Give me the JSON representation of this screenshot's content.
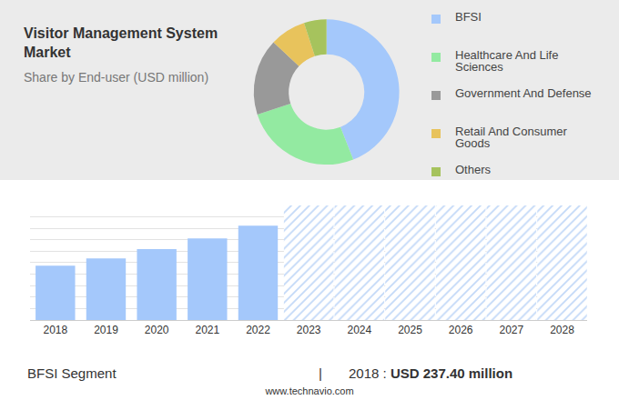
{
  "chart_data": [
    {
      "type": "pie",
      "title": "Visitor Management System Market",
      "subtitle": "Share by End-user (USD million)",
      "categories": [
        "BFSI",
        "Healthcare And Life Sciences",
        "Government And Defense",
        "Retail And Consumer Goods",
        "Others"
      ],
      "values": [
        44,
        26,
        17,
        8,
        5
      ],
      "colors": [
        "#a4c8fb",
        "#93eaa1",
        "#999999",
        "#e8c35c",
        "#a6c35d"
      ],
      "legend": "right"
    },
    {
      "type": "bar",
      "categories": [
        "2018",
        "2019",
        "2020",
        "2021",
        "2022",
        "2023",
        "2024",
        "2025",
        "2026",
        "2027",
        "2028"
      ],
      "values": [
        237.4,
        269,
        309,
        356,
        412,
        null,
        null,
        null,
        null,
        null,
        null
      ],
      "color": "#a4c8fb",
      "ylim": [
        0,
        500
      ],
      "yticks": [
        0,
        50,
        100,
        150,
        200,
        250,
        300,
        350,
        400,
        450,
        500
      ],
      "grid": true,
      "tick_labels": "x"
    }
  ],
  "footer": {
    "segment": "BFSI Segment",
    "separator": "|",
    "label": "2018 :",
    "value": "USD 237.40 million",
    "source": "www.technavio.com"
  }
}
